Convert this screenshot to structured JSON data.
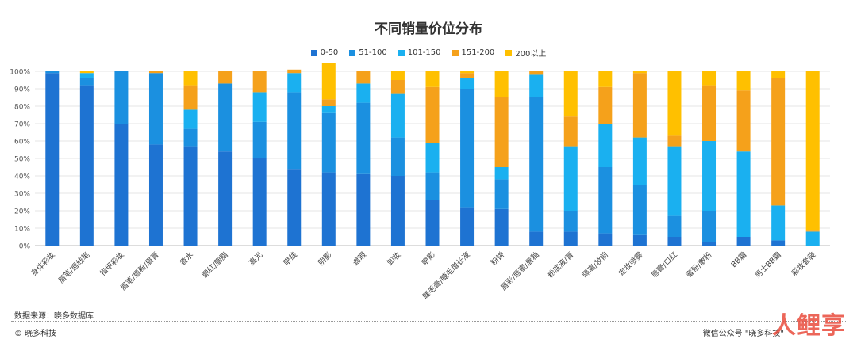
{
  "chart_data": {
    "type": "bar",
    "stacked": true,
    "title": "不同销量价位分布",
    "categories": [
      "身体彩妆",
      "唇笔/唇线笔",
      "指甲彩妆",
      "眉笔/眉粉/眉膏",
      "香水",
      "腮红/胭脂",
      "高光",
      "眼线",
      "阴影",
      "遮瑕",
      "卸妆",
      "眼影",
      "睫毛膏/睫毛增长液",
      "粉饼",
      "唇彩/唇蜜/唇釉",
      "粉底液/膏",
      "隔离/妆前",
      "定妆喷雾",
      "唇膏/口红",
      "蜜粉/散粉",
      "BB霜",
      "男士BB霜",
      "彩妆套装"
    ],
    "series": [
      {
        "name": "0-50",
        "color": "#1e73d2",
        "values": [
          99,
          92,
          70,
          58,
          57,
          54,
          50,
          44,
          42,
          41,
          40,
          26,
          22,
          21,
          8,
          8,
          7,
          6,
          5,
          2,
          5,
          3,
          0
        ]
      },
      {
        "name": "51-100",
        "color": "#1b90e0",
        "values": [
          1,
          4,
          30,
          41,
          10,
          39,
          21,
          44,
          34,
          41,
          22,
          16,
          68,
          17,
          77,
          12,
          38,
          29,
          12,
          18,
          0,
          0,
          0
        ]
      },
      {
        "name": "101-150",
        "color": "#1ab0f0",
        "values": [
          0,
          3,
          0,
          0,
          11,
          0,
          17,
          11,
          4,
          11,
          25,
          17,
          6,
          7,
          13,
          37,
          25,
          27,
          40,
          40,
          49,
          20,
          8
        ]
      },
      {
        "name": "151-200",
        "color": "#f5a11b",
        "values": [
          0,
          0,
          0,
          1,
          14,
          7,
          12,
          2,
          4,
          7,
          8,
          32,
          3,
          40,
          2,
          17,
          21,
          37,
          6,
          32,
          35,
          73,
          1
        ]
      },
      {
        "name": "200以上",
        "color": "#ffc000",
        "values": [
          0,
          1,
          0,
          0,
          8,
          0,
          0,
          0,
          21,
          0,
          5,
          9,
          1,
          15,
          0,
          26,
          9,
          1,
          37,
          8,
          11,
          4,
          91
        ]
      }
    ],
    "yticks": [
      "0%",
      "10%",
      "20%",
      "30%",
      "40%",
      "50%",
      "60%",
      "70%",
      "80%",
      "90%",
      "100%"
    ],
    "ylim": [
      0,
      100
    ],
    "grid": true,
    "legend_position": "top-center"
  },
  "footer": {
    "source": "数据来源：晓多数据库",
    "copyright": "© 晓多科技",
    "wechat": "微信公众号 \"晓多科技\"",
    "watermark": "人鲤享"
  }
}
